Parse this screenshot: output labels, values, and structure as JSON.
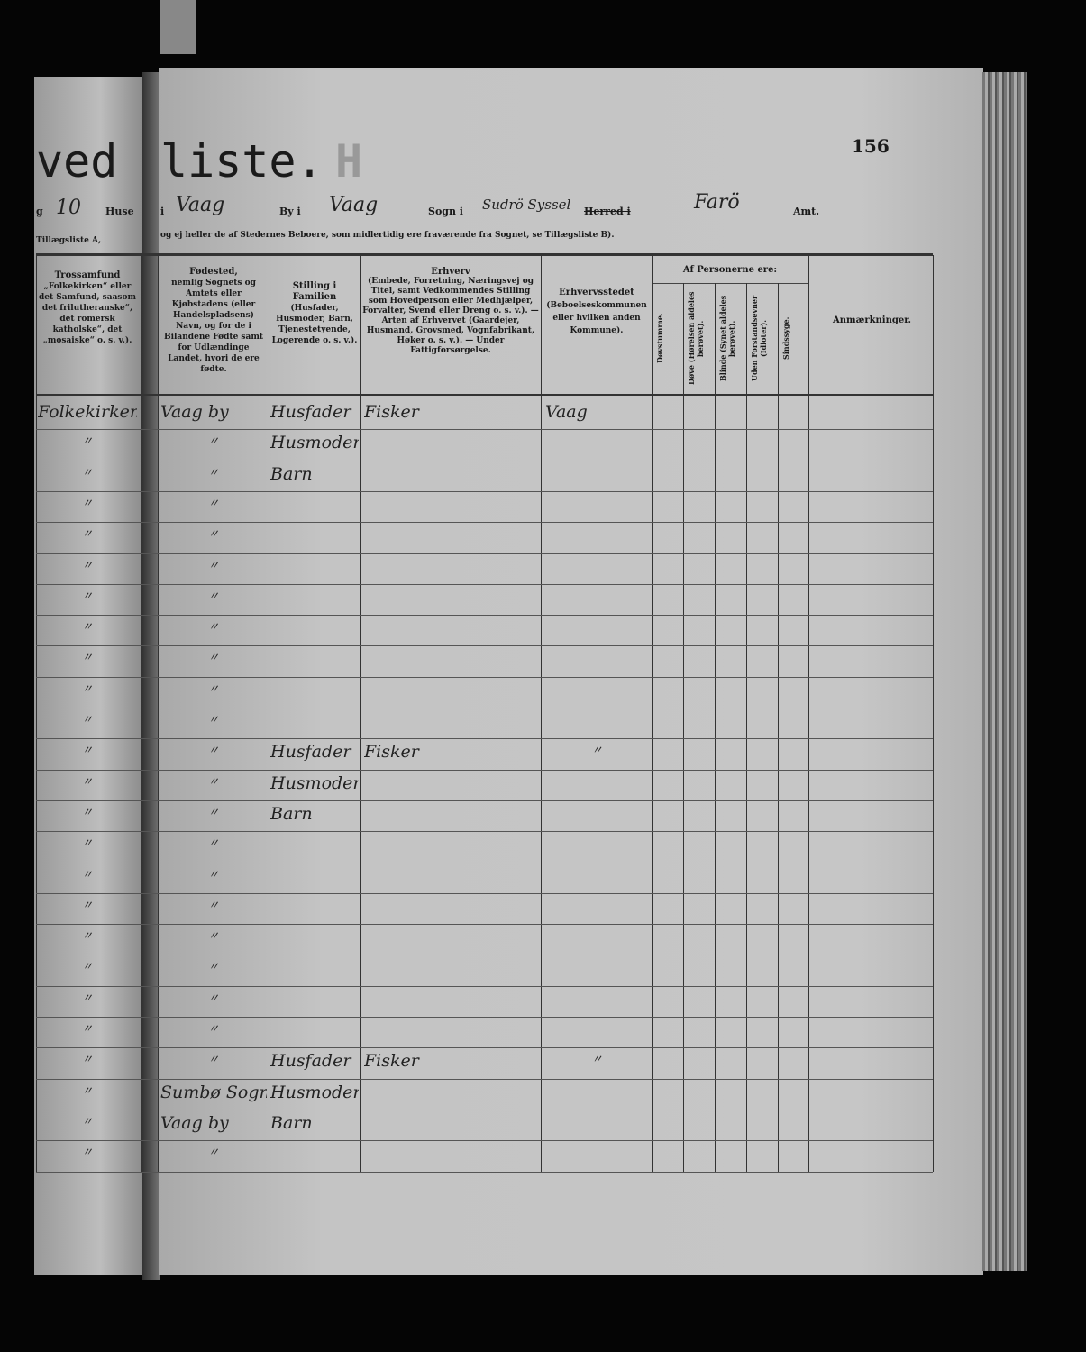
{
  "page_number": "156",
  "title_left": "ved",
  "title_right": "liste.",
  "title_stamp": "H",
  "header_line": {
    "left_fragment": "g",
    "house_no": "10",
    "huse_label": "Huse",
    "i_label": "i",
    "place1": "Vaag",
    "by_label": "By i",
    "place2": "Vaag",
    "sogn_label": "Sogn i",
    "sogn_value": "Sudrö Syssel",
    "herred_label": "Herred i",
    "herred_value": "Farö",
    "amt_label": "Amt."
  },
  "note_left": "Tillægsliste A,",
  "note_right": "og ej heller de af Stedernes Beboere, som midlertidig ere fraværende fra Sognet, se Tillægsliste B).",
  "columns": {
    "trossamfund": {
      "title": "Trossamfund",
      "desc": "„Folkekirken“ eller det Samfund, saasom det frilutheranske“, det romersk katholske“, det „mosaiske“ o. s. v.)."
    },
    "fodested": {
      "title": "Fødested,",
      "desc": "nemlig Sognets og Amtets eller Kjøbstadens (eller Handelspladsens) Navn, og for de i Bilandene Fødte samt for Udlændinge Landet, hvori de ere fødte."
    },
    "stilling": {
      "title": "Stilling i Familien",
      "desc": "(Husfader, Husmoder, Barn, Tjenestetyende, Logerende o. s. v.)."
    },
    "erhverv": {
      "title": "Erhverv",
      "desc": "(Embede, Forretning, Næringsvej og Titel, samt Vedkommendes Stilling som Hovedperson eller Medhjælper, Forvalter, Svend eller Dreng o. s. v.). — Arten af Erhvervet (Gaardejer, Husmand, Grovsmed, Vognfabrikant, Høker o. s. v.). — Under Fattigforsørgelse."
    },
    "erhvervsstedet": {
      "title": "Erhvervsstedet",
      "desc": "(Beboelseskommunen eller hvilken anden Kommune)."
    },
    "af_personerne": "Af Personerne ere:",
    "sub": [
      "Døvstumme.",
      "Døve (Hørelsen aldeles berøvet).",
      "Blinde (Synet aldeles berøvet).",
      "Uden Forstandsevner (Idioter).",
      "Sindssyge."
    ],
    "anmaerkninger": "Anmærkninger."
  },
  "rows": [
    {
      "tros": "Folkekirken",
      "fod": "Vaag by",
      "stil": "Husfader",
      "erh": "Fisker",
      "sted": "Vaag"
    },
    {
      "tros": "〃",
      "fod": "〃",
      "stil": "Husmoder",
      "erh": "",
      "sted": ""
    },
    {
      "tros": "〃",
      "fod": "〃",
      "stil": "Barn",
      "erh": "",
      "sted": ""
    },
    {
      "tros": "〃",
      "fod": "〃",
      "stil": "",
      "erh": "",
      "sted": ""
    },
    {
      "tros": "〃",
      "fod": "〃",
      "stil": "",
      "erh": "",
      "sted": ""
    },
    {
      "tros": "〃",
      "fod": "〃",
      "stil": "",
      "erh": "",
      "sted": ""
    },
    {
      "tros": "〃",
      "fod": "〃",
      "stil": "",
      "erh": "",
      "sted": ""
    },
    {
      "tros": "〃",
      "fod": "〃",
      "stil": "",
      "erh": "",
      "sted": ""
    },
    {
      "tros": "〃",
      "fod": "〃",
      "stil": "",
      "erh": "",
      "sted": ""
    },
    {
      "tros": "〃",
      "fod": "〃",
      "stil": "",
      "erh": "",
      "sted": ""
    },
    {
      "tros": "〃",
      "fod": "〃",
      "stil": "",
      "erh": "",
      "sted": ""
    },
    {
      "tros": "〃",
      "fod": "〃",
      "stil": "Husfader",
      "erh": "Fisker",
      "sted": "〃"
    },
    {
      "tros": "〃",
      "fod": "〃",
      "stil": "Husmoder",
      "erh": "",
      "sted": ""
    },
    {
      "tros": "〃",
      "fod": "〃",
      "stil": "Barn",
      "erh": "",
      "sted": ""
    },
    {
      "tros": "〃",
      "fod": "〃",
      "stil": "",
      "erh": "",
      "sted": ""
    },
    {
      "tros": "〃",
      "fod": "〃",
      "stil": "",
      "erh": "",
      "sted": ""
    },
    {
      "tros": "〃",
      "fod": "〃",
      "stil": "",
      "erh": "",
      "sted": ""
    },
    {
      "tros": "〃",
      "fod": "〃",
      "stil": "",
      "erh": "",
      "sted": ""
    },
    {
      "tros": "〃",
      "fod": "〃",
      "stil": "",
      "erh": "",
      "sted": ""
    },
    {
      "tros": "〃",
      "fod": "〃",
      "stil": "",
      "erh": "",
      "sted": ""
    },
    {
      "tros": "〃",
      "fod": "〃",
      "stil": "",
      "erh": "",
      "sted": ""
    },
    {
      "tros": "〃",
      "fod": "〃",
      "stil": "Husfader",
      "erh": "Fisker",
      "sted": "〃"
    },
    {
      "tros": "〃",
      "fod": "Sumbø Sogn",
      "stil": "Husmoder",
      "erh": "",
      "sted": ""
    },
    {
      "tros": "〃",
      "fod": "Vaag by",
      "stil": "Barn",
      "erh": "",
      "sted": ""
    },
    {
      "tros": "〃",
      "fod": "〃",
      "stil": "",
      "erh": "",
      "sted": ""
    }
  ]
}
